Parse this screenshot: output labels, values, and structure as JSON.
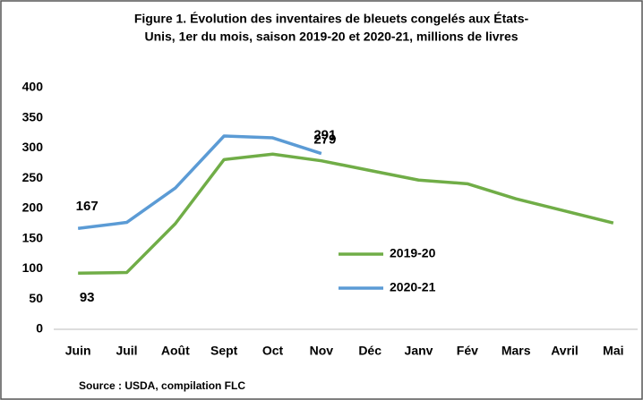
{
  "chart_data": {
    "type": "line",
    "title": [
      "Figure 1. Évolution des inventaires de bleuets congelés aux États-",
      "Unis, 1er du mois, saison 2019-20 et 2020-21, millions de livres"
    ],
    "categories": [
      "Juin",
      "Juil",
      "Août",
      "Sept",
      "Oct",
      "Nov",
      "Déc",
      "Janv",
      "Fév",
      "Mars",
      "Avril",
      "Mai"
    ],
    "series": [
      {
        "name": "2019-20",
        "color": "#70ad47",
        "label_color": "#1f3864",
        "values": [
          93,
          94,
          175,
          281,
          290,
          279,
          263,
          247,
          241,
          216,
          196,
          176
        ]
      },
      {
        "name": "2020-21",
        "color": "#5b9bd5",
        "label_color": "#5b9bd5",
        "values": [
          167,
          177,
          234,
          320,
          317,
          291,
          null,
          null,
          null,
          null,
          null,
          null
        ]
      }
    ],
    "ylim": [
      0,
      400
    ],
    "yticks": [
      0,
      50,
      100,
      150,
      200,
      250,
      300,
      350,
      400
    ],
    "grid": false,
    "source": "Source : USDA, compilation FLC"
  }
}
